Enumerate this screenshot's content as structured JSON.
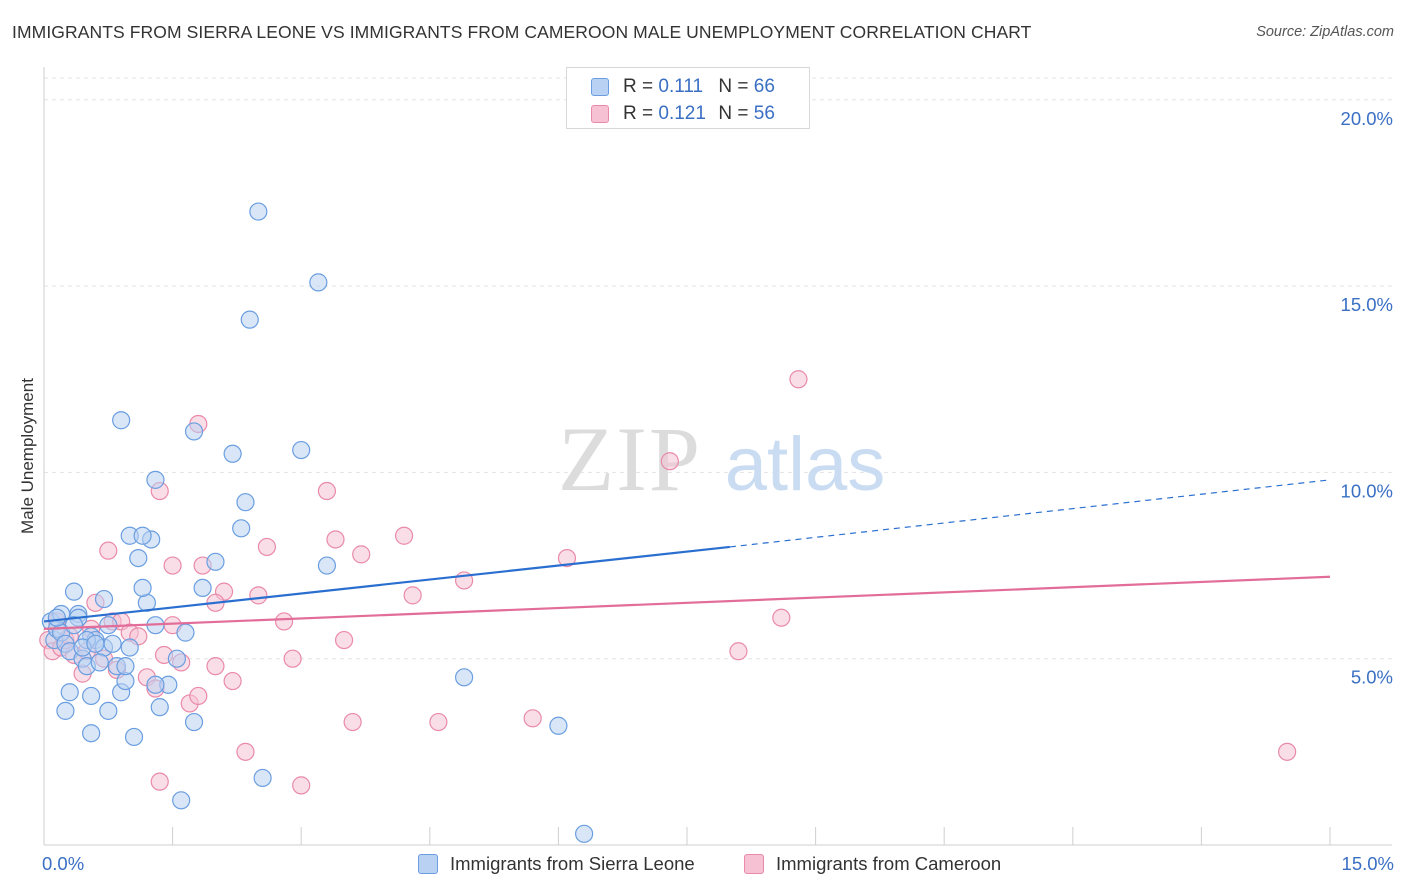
{
  "title": "IMMIGRANTS FROM SIERRA LEONE VS IMMIGRANTS FROM CAMEROON MALE UNEMPLOYMENT CORRELATION CHART",
  "source": "Source: ZipAtlas.com",
  "watermark": {
    "zip": "ZIP",
    "atlas": "atlas"
  },
  "legend": {
    "rows": [
      {
        "r_key": "R =",
        "r_val": "0.111",
        "n_key": "N =",
        "n_val": "66"
      },
      {
        "r_key": "R =",
        "r_val": "0.121",
        "n_key": "N =",
        "n_val": "56"
      }
    ]
  },
  "bottom_legend": {
    "series1": "Immigrants from Sierra Leone",
    "series2": "Immigrants from Cameroon"
  },
  "colors": {
    "series1_fill": "#b9d1f2",
    "series1_stroke": "#6a9ee0",
    "series1_line": "#2a6fd0",
    "series2_fill": "#f6c2d3",
    "series2_stroke": "#e98aa9",
    "series2_line": "#e26d98",
    "axis_text": "#3a6fc4"
  },
  "chart_data": {
    "type": "scatter",
    "title": "IMMIGRANTS FROM SIERRA LEONE VS IMMIGRANTS FROM CAMEROON MALE UNEMPLOYMENT CORRELATION CHART",
    "xlabel": "",
    "ylabel": "Male Unemployment",
    "xlim": [
      0,
      15
    ],
    "ylim": [
      0,
      20.8
    ],
    "x_tick_labels": [
      "0.0%",
      "15.0%"
    ],
    "y_ticks": [
      5,
      10,
      15,
      20
    ],
    "y_tick_labels": [
      "5.0%",
      "10.0%",
      "15.0%",
      "20.0%"
    ],
    "grid": true,
    "series": [
      {
        "name": "Immigrants from Sierra Leone",
        "R": 0.111,
        "N": 66,
        "points": [
          [
            0.08,
            6.0
          ],
          [
            0.12,
            5.5
          ],
          [
            0.15,
            5.8
          ],
          [
            0.2,
            5.7
          ],
          [
            0.25,
            5.4
          ],
          [
            0.3,
            5.2
          ],
          [
            0.35,
            6.8
          ],
          [
            0.4,
            6.2
          ],
          [
            0.45,
            5.0
          ],
          [
            0.5,
            4.8
          ],
          [
            0.55,
            5.6
          ],
          [
            0.6,
            5.5
          ],
          [
            0.7,
            5.3
          ],
          [
            0.75,
            5.9
          ],
          [
            0.8,
            5.4
          ],
          [
            0.85,
            4.8
          ],
          [
            0.9,
            4.1
          ],
          [
            0.95,
            4.4
          ],
          [
            1.05,
            2.9
          ],
          [
            1.1,
            7.7
          ],
          [
            1.2,
            6.5
          ],
          [
            1.3,
            5.9
          ],
          [
            1.35,
            3.7
          ],
          [
            1.45,
            4.3
          ],
          [
            1.55,
            5.0
          ],
          [
            1.65,
            5.7
          ],
          [
            1.75,
            3.3
          ],
          [
            1.85,
            6.9
          ],
          [
            2.0,
            7.6
          ],
          [
            2.2,
            10.5
          ],
          [
            2.35,
            9.2
          ],
          [
            2.4,
            14.1
          ],
          [
            2.55,
            1.8
          ],
          [
            3.2,
            15.1
          ],
          [
            2.5,
            17.0
          ],
          [
            1.3,
            9.8
          ],
          [
            0.9,
            11.4
          ],
          [
            1.25,
            8.2
          ],
          [
            1.0,
            8.3
          ],
          [
            1.15,
            8.3
          ],
          [
            0.4,
            6.1
          ],
          [
            0.65,
            4.9
          ],
          [
            0.7,
            6.6
          ],
          [
            0.55,
            4.0
          ],
          [
            0.55,
            3.0
          ],
          [
            0.3,
            4.1
          ],
          [
            0.2,
            6.2
          ],
          [
            1.6,
            1.2
          ],
          [
            0.25,
            3.6
          ],
          [
            0.5,
            5.5
          ],
          [
            0.75,
            3.6
          ],
          [
            1.15,
            6.9
          ],
          [
            1.75,
            11.1
          ],
          [
            2.3,
            8.5
          ],
          [
            3.0,
            10.6
          ],
          [
            3.3,
            7.5
          ],
          [
            1.0,
            5.3
          ],
          [
            0.35,
            5.9
          ],
          [
            0.15,
            6.1
          ],
          [
            0.45,
            5.3
          ],
          [
            0.6,
            5.4
          ],
          [
            4.9,
            4.5
          ],
          [
            6.0,
            3.2
          ],
          [
            6.3,
            0.3
          ],
          [
            1.3,
            4.3
          ],
          [
            0.95,
            4.8
          ]
        ],
        "trend": {
          "x0": 0.0,
          "y0": 6.0,
          "x1_solid": 8.0,
          "y1_solid": 8.0,
          "x1": 15.0,
          "y1": 9.8
        }
      },
      {
        "name": "Immigrants from Cameroon",
        "R": 0.121,
        "N": 56,
        "points": [
          [
            0.05,
            5.5
          ],
          [
            0.1,
            5.2
          ],
          [
            0.15,
            6.0
          ],
          [
            0.2,
            5.3
          ],
          [
            0.25,
            5.5
          ],
          [
            0.35,
            5.1
          ],
          [
            0.45,
            4.6
          ],
          [
            0.55,
            5.8
          ],
          [
            0.6,
            6.5
          ],
          [
            0.7,
            5.0
          ],
          [
            0.8,
            6.0
          ],
          [
            0.85,
            4.7
          ],
          [
            0.9,
            6.0
          ],
          [
            1.0,
            5.7
          ],
          [
            1.2,
            4.5
          ],
          [
            1.3,
            4.2
          ],
          [
            1.35,
            9.5
          ],
          [
            1.4,
            5.1
          ],
          [
            1.5,
            5.9
          ],
          [
            1.6,
            4.9
          ],
          [
            1.7,
            3.8
          ],
          [
            1.8,
            11.3
          ],
          [
            1.85,
            7.5
          ],
          [
            2.0,
            4.8
          ],
          [
            2.1,
            6.8
          ],
          [
            2.2,
            4.4
          ],
          [
            2.35,
            2.5
          ],
          [
            2.5,
            6.7
          ],
          [
            2.6,
            8.0
          ],
          [
            2.8,
            6.0
          ],
          [
            2.9,
            5.0
          ],
          [
            3.0,
            1.6
          ],
          [
            3.3,
            9.5
          ],
          [
            3.5,
            5.5
          ],
          [
            3.6,
            3.3
          ],
          [
            3.7,
            7.8
          ],
          [
            4.2,
            8.3
          ],
          [
            4.3,
            6.7
          ],
          [
            4.6,
            3.3
          ],
          [
            4.9,
            7.1
          ],
          [
            5.7,
            3.4
          ],
          [
            6.1,
            7.7
          ],
          [
            7.3,
            10.3
          ],
          [
            8.1,
            5.2
          ],
          [
            8.6,
            6.1
          ],
          [
            8.8,
            12.5
          ],
          [
            1.35,
            1.7
          ],
          [
            0.75,
            7.9
          ],
          [
            1.5,
            7.5
          ],
          [
            1.8,
            4.0
          ],
          [
            2.0,
            6.5
          ],
          [
            3.4,
            8.2
          ],
          [
            0.3,
            5.6
          ],
          [
            0.5,
            5.2
          ],
          [
            1.1,
            5.6
          ],
          [
            14.5,
            2.5
          ]
        ],
        "trend": {
          "x0": 0.0,
          "y0": 5.8,
          "x1": 15.0,
          "y1": 7.2
        }
      }
    ]
  }
}
